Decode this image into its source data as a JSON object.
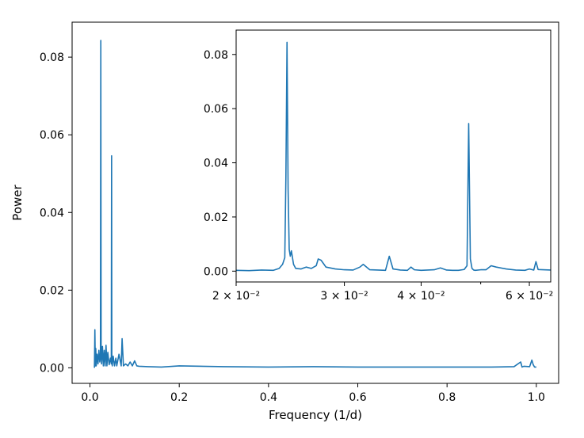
{
  "chart_data": [
    {
      "type": "line",
      "title": "",
      "xlabel": "Frequency (1/d)",
      "ylabel": "Power",
      "xlim": [
        -0.04,
        1.05
      ],
      "ylim": [
        -0.004,
        0.089
      ],
      "x_ticks": [
        0.0,
        0.2,
        0.4,
        0.6,
        0.8,
        1.0
      ],
      "x_tick_labels": [
        "0.0",
        "0.2",
        "0.4",
        "0.6",
        "0.8",
        "1.0"
      ],
      "y_ticks": [
        0.0,
        0.02,
        0.04,
        0.06,
        0.08
      ],
      "y_tick_labels": [
        "0.00",
        "0.02",
        "0.04",
        "0.06",
        "0.08"
      ],
      "grid": false,
      "color": "#1f77b4",
      "series": [
        {
          "x": [
            0.01,
            0.011,
            0.012,
            0.013,
            0.014,
            0.016,
            0.018,
            0.02,
            0.022,
            0.0235,
            0.0243,
            0.025,
            0.026,
            0.028,
            0.03,
            0.032,
            0.034,
            0.036,
            0.038,
            0.04,
            0.043,
            0.046,
            0.0478,
            0.0485,
            0.049,
            0.05,
            0.052,
            0.055,
            0.058,
            0.06,
            0.065,
            0.07,
            0.072,
            0.075,
            0.08,
            0.085,
            0.09,
            0.095,
            0.1,
            0.105,
            0.11,
            0.13,
            0.16,
            0.2,
            0.3,
            0.4,
            0.5,
            0.6,
            0.7,
            0.8,
            0.9,
            0.95,
            0.965,
            0.968,
            0.972,
            0.985,
            0.99,
            0.993,
            0.996,
            1.0
          ],
          "y": [
            0.0,
            0.0098,
            0.0005,
            0.005,
            0.0005,
            0.0035,
            0.001,
            0.0045,
            0.0015,
            0.0025,
            0.0843,
            0.006,
            0.001,
            0.0055,
            0.0005,
            0.0045,
            0.0005,
            0.0058,
            0.0005,
            0.004,
            0.0008,
            0.0025,
            0.001,
            0.0546,
            0.002,
            0.0005,
            0.003,
            0.0005,
            0.0025,
            0.0005,
            0.0035,
            0.0005,
            0.0075,
            0.0005,
            0.001,
            0.0005,
            0.0015,
            0.0005,
            0.0018,
            0.0005,
            0.0004,
            0.0003,
            0.0002,
            0.0005,
            0.0003,
            0.0002,
            0.0003,
            0.0002,
            0.0002,
            0.0002,
            0.0002,
            0.0003,
            0.0015,
            0.0002,
            0.0004,
            0.0003,
            0.002,
            0.0008,
            0.0002,
            0.0002
          ]
        }
      ]
    },
    {
      "type": "line",
      "title": "",
      "xlabel": "",
      "ylabel": "",
      "x_scale": "log",
      "xlim": [
        0.02,
        0.065
      ],
      "ylim": [
        -0.004,
        0.089
      ],
      "x_ticks": [
        0.02,
        0.03,
        0.04,
        0.06
      ],
      "x_tick_labels": [
        "2 × 10⁻²",
        "3 × 10⁻²",
        "4 × 10⁻²",
        "6 × 10⁻²"
      ],
      "y_ticks": [
        0.0,
        0.02,
        0.04,
        0.06,
        0.08
      ],
      "y_tick_labels": [
        "0.00",
        "0.02",
        "0.04",
        "0.06",
        "0.08"
      ],
      "grid": false,
      "color": "#1f77b4",
      "series": [
        {
          "x": [
            0.02,
            0.021,
            0.022,
            0.023,
            0.0235,
            0.0238,
            0.024,
            0.0241,
            0.0242,
            0.0243,
            0.0244,
            0.0245,
            0.0246,
            0.0248,
            0.025,
            0.0255,
            0.026,
            0.0265,
            0.027,
            0.0272,
            0.0275,
            0.0278,
            0.028,
            0.029,
            0.03,
            0.031,
            0.0318,
            0.0322,
            0.033,
            0.034,
            0.035,
            0.0355,
            0.036,
            0.037,
            0.038,
            0.0385,
            0.039,
            0.04,
            0.042,
            0.043,
            0.044,
            0.045,
            0.046,
            0.047,
            0.0475,
            0.0478,
            0.0481,
            0.0484,
            0.0487,
            0.049,
            0.05,
            0.051,
            0.052,
            0.053,
            0.055,
            0.057,
            0.059,
            0.06,
            0.061,
            0.0615,
            0.062,
            0.065
          ],
          "y": [
            0.0003,
            0.0002,
            0.0004,
            0.0003,
            0.001,
            0.0025,
            0.005,
            0.035,
            0.0845,
            0.03,
            0.008,
            0.0055,
            0.0075,
            0.0025,
            0.001,
            0.0008,
            0.0015,
            0.001,
            0.002,
            0.0045,
            0.004,
            0.0025,
            0.0015,
            0.0008,
            0.0005,
            0.0004,
            0.0015,
            0.0025,
            0.0005,
            0.0004,
            0.0003,
            0.0055,
            0.0008,
            0.0004,
            0.0003,
            0.0015,
            0.0005,
            0.0003,
            0.0005,
            0.0012,
            0.0004,
            0.0003,
            0.0003,
            0.0006,
            0.002,
            0.0545,
            0.0045,
            0.001,
            0.0004,
            0.0003,
            0.0005,
            0.0005,
            0.002,
            0.0015,
            0.0008,
            0.0004,
            0.0003,
            0.0008,
            0.0004,
            0.0035,
            0.0006,
            0.0004
          ]
        }
      ]
    }
  ]
}
